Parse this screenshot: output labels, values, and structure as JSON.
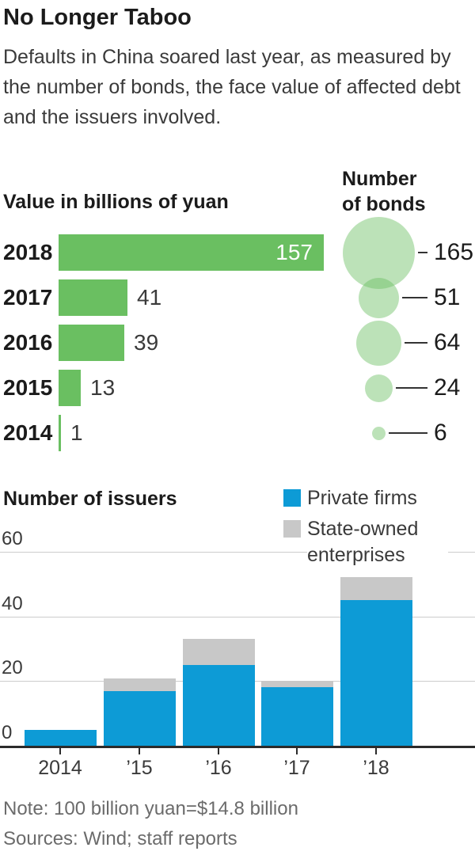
{
  "title": "No Longer Taboo",
  "subtitle": "Defaults in China soared last year, as measured by the number of bonds, the face value of affected debt and the issuers involved.",
  "note": "Note: 100 billion yuan=$14.8 billion",
  "sources": "Sources: Wind; staff reports",
  "colors": {
    "green_bar": "#6abf61",
    "green_bubble": "rgba(106,191,97,0.45)",
    "blue": "#0d9bd6",
    "gray": "#c8c8c8",
    "gridline": "#cccccc",
    "axis": "#2b2b2b"
  },
  "chart_data": [
    {
      "type": "bar",
      "orientation": "horizontal",
      "title": "Value in billions of yuan",
      "secondary_title": "Number of bonds",
      "categories": [
        "2018",
        "2017",
        "2016",
        "2015",
        "2014"
      ],
      "values": [
        157,
        41,
        39,
        13,
        1
      ],
      "xlim": [
        0,
        160
      ],
      "bubbles": {
        "label": "Number of bonds",
        "values": [
          165,
          51,
          64,
          24,
          6
        ],
        "scaling": "area"
      }
    },
    {
      "type": "bar",
      "stacked": true,
      "title": "Number of issuers",
      "categories": [
        "2014",
        "’15",
        "’16",
        "’17",
        "’18"
      ],
      "series": [
        {
          "name": "Private firms",
          "values": [
            5,
            17,
            25,
            18,
            45
          ]
        },
        {
          "name": "State-owned enterprises",
          "values": [
            0,
            4,
            8,
            2,
            7
          ]
        }
      ],
      "ylim": [
        0,
        60
      ],
      "yticks": [
        0,
        20,
        40,
        60
      ],
      "grid": true,
      "legend_position": "top-right"
    }
  ]
}
